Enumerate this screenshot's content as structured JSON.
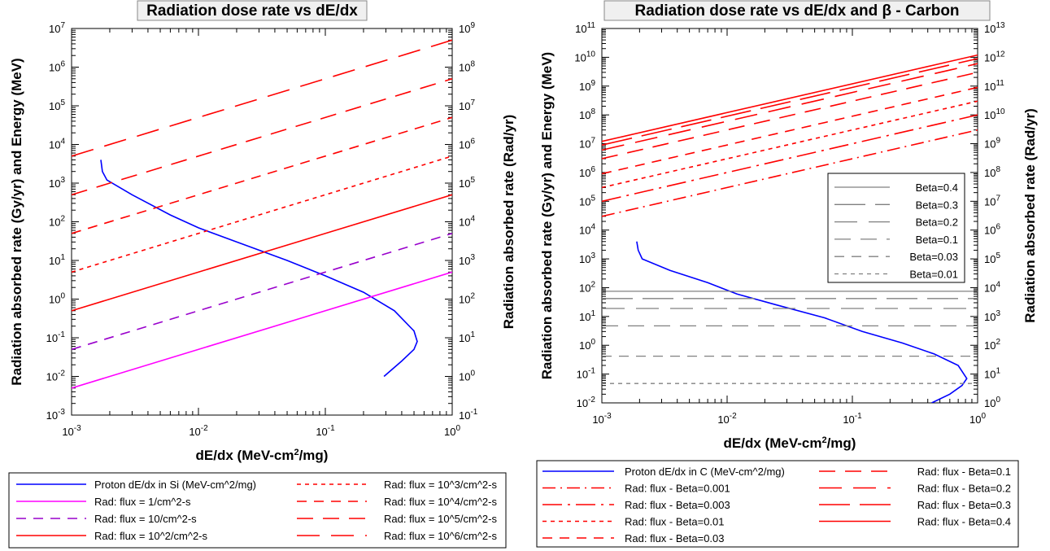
{
  "chart_data": [
    {
      "type": "line",
      "title": "Radiation dose rate vs dE/dx",
      "xlabel": "dE/dx (MeV-cm²/mg)",
      "ylabel_left": "Radiation absorbed rate (Gy/yr) and Energy (MeV)",
      "ylabel_right": "Radiation absorbed rate (Rad/yr)",
      "x_scale": "log",
      "y_scale": "log",
      "xlim": [
        0.001,
        1
      ],
      "ylim_left": [
        0.001,
        10000000
      ],
      "ylim_right": [
        0.1,
        1000000000
      ],
      "x_tick_labels": [
        {
          "base": "10",
          "exp": "-3"
        },
        {
          "base": "10",
          "exp": "-2"
        },
        {
          "base": "10",
          "exp": "-1"
        },
        {
          "base": "10",
          "exp": "0"
        }
      ],
      "y_left_tick_labels": [
        {
          "base": "10",
          "exp": "-3"
        },
        {
          "base": "10",
          "exp": "-2"
        },
        {
          "base": "10",
          "exp": "-1"
        },
        {
          "base": "10",
          "exp": "0"
        },
        {
          "base": "10",
          "exp": "1"
        },
        {
          "base": "10",
          "exp": "2"
        },
        {
          "base": "10",
          "exp": "3"
        },
        {
          "base": "10",
          "exp": "4"
        },
        {
          "base": "10",
          "exp": "5"
        },
        {
          "base": "10",
          "exp": "6"
        },
        {
          "base": "10",
          "exp": "7"
        }
      ],
      "y_right_tick_labels": [
        {
          "base": "10",
          "exp": "-1"
        },
        {
          "base": "10",
          "exp": "0"
        },
        {
          "base": "10",
          "exp": "1"
        },
        {
          "base": "10",
          "exp": "2"
        },
        {
          "base": "10",
          "exp": "3"
        },
        {
          "base": "10",
          "exp": "4"
        },
        {
          "base": "10",
          "exp": "5"
        },
        {
          "base": "10",
          "exp": "6"
        },
        {
          "base": "10",
          "exp": "7"
        },
        {
          "base": "10",
          "exp": "8"
        },
        {
          "base": "10",
          "exp": "9"
        }
      ],
      "grid": false,
      "legend_position": "below",
      "series": [
        {
          "name": "Proton dE/dx in Si (MeV-cm^2/mg)",
          "color": "#0000ff",
          "dash": "solid",
          "x": [
            0.0017,
            0.00175,
            0.0019,
            0.003,
            0.006,
            0.01,
            0.02,
            0.05,
            0.1,
            0.2,
            0.35,
            0.5,
            0.53,
            0.5,
            0.4,
            0.29
          ],
          "y": [
            4000,
            2000,
            1200,
            500,
            150,
            70,
            30,
            10,
            4,
            1.5,
            0.5,
            0.15,
            0.08,
            0.05,
            0.025,
            0.01
          ]
        },
        {
          "name": "Rad: flux = 1/cm^2-s",
          "color": "#ff00ff",
          "dash": "solid",
          "x": [
            0.001,
            1
          ],
          "y": [
            0.005,
            5
          ]
        },
        {
          "name": "Rad: flux = 10/cm^2-s",
          "color": "#9900cc",
          "dash": "dash-medium",
          "x": [
            0.001,
            1
          ],
          "y": [
            0.05,
            50
          ]
        },
        {
          "name": "Rad: flux = 10^2/cm^2-s",
          "color": "#ff0000",
          "dash": "solid",
          "x": [
            0.001,
            1
          ],
          "y": [
            0.5,
            500
          ]
        },
        {
          "name": "Rad: flux = 10^3/cm^2-s",
          "color": "#ff0000",
          "dash": "dash-short",
          "x": [
            0.001,
            1
          ],
          "y": [
            5,
            5000
          ]
        },
        {
          "name": "Rad: flux = 10^4/cm^2-s",
          "color": "#ff0000",
          "dash": "dash-medium",
          "x": [
            0.001,
            1
          ],
          "y": [
            50,
            50000
          ]
        },
        {
          "name": "Rad: flux = 10^5/cm^2-s",
          "color": "#ff0000",
          "dash": "dash-long",
          "x": [
            0.001,
            1
          ],
          "y": [
            500,
            500000
          ]
        },
        {
          "name": "Rad: flux = 10^6/cm^2-s",
          "color": "#ff0000",
          "dash": "dash-xlong",
          "x": [
            0.001,
            1
          ],
          "y": [
            5000,
            5000000
          ]
        }
      ],
      "legend": {
        "columns": [
          [
            "Proton dE/dx in Si (MeV-cm^2/mg)",
            "Rad: flux = 1/cm^2-s",
            "Rad: flux = 10/cm^2-s",
            "Rad: flux = 10^2/cm^2-s"
          ],
          [
            "Rad: flux = 10^3/cm^2-s",
            "Rad: flux = 10^4/cm^2-s",
            "Rad: flux = 10^5/cm^2-s",
            "Rad: flux = 10^6/cm^2-s"
          ]
        ]
      }
    },
    {
      "type": "line",
      "title": "Radiation dose rate vs dE/dx and β - Carbon",
      "xlabel": "dE/dx (MeV-cm²/mg)",
      "ylabel_left": "Radiation absorbed rate (Gy/yr) and Energy (MeV)",
      "ylabel_right": "Radiation absorbed rate (Rad/yr)",
      "x_scale": "log",
      "y_scale": "log",
      "xlim": [
        0.001,
        1
      ],
      "ylim_left": [
        0.01,
        100000000000
      ],
      "ylim_right": [
        1,
        10000000000000
      ],
      "x_tick_labels": [
        {
          "base": "10",
          "exp": "-3"
        },
        {
          "base": "10",
          "exp": "-2"
        },
        {
          "base": "10",
          "exp": "-1"
        },
        {
          "base": "10",
          "exp": "0"
        }
      ],
      "y_left_tick_labels": [
        {
          "base": "10",
          "exp": "-2"
        },
        {
          "base": "10",
          "exp": "-1"
        },
        {
          "base": "10",
          "exp": "0"
        },
        {
          "base": "10",
          "exp": "1"
        },
        {
          "base": "10",
          "exp": "2"
        },
        {
          "base": "10",
          "exp": "3"
        },
        {
          "base": "10",
          "exp": "4"
        },
        {
          "base": "10",
          "exp": "5"
        },
        {
          "base": "10",
          "exp": "6"
        },
        {
          "base": "10",
          "exp": "7"
        },
        {
          "base": "10",
          "exp": "8"
        },
        {
          "base": "10",
          "exp": "9"
        },
        {
          "base": "10",
          "exp": "10"
        },
        {
          "base": "10",
          "exp": "11"
        }
      ],
      "y_right_tick_labels": [
        {
          "base": "10",
          "exp": "0"
        },
        {
          "base": "10",
          "exp": "1"
        },
        {
          "base": "10",
          "exp": "2"
        },
        {
          "base": "10",
          "exp": "3"
        },
        {
          "base": "10",
          "exp": "4"
        },
        {
          "base": "10",
          "exp": "5"
        },
        {
          "base": "10",
          "exp": "6"
        },
        {
          "base": "10",
          "exp": "7"
        },
        {
          "base": "10",
          "exp": "8"
        },
        {
          "base": "10",
          "exp": "9"
        },
        {
          "base": "10",
          "exp": "10"
        },
        {
          "base": "10",
          "exp": "11"
        },
        {
          "base": "10",
          "exp": "12"
        },
        {
          "base": "10",
          "exp": "13"
        }
      ],
      "grid": false,
      "legend_position": "below",
      "series": [
        {
          "name": "Proton dE/dx in C (MeV-cm^2/mg)",
          "color": "#0000ff",
          "dash": "solid",
          "x": [
            0.0019,
            0.00195,
            0.0021,
            0.0035,
            0.007,
            0.012,
            0.025,
            0.06,
            0.12,
            0.25,
            0.45,
            0.7,
            0.82,
            0.75,
            0.6,
            0.43
          ],
          "y": [
            4000,
            2000,
            1000,
            400,
            150,
            60,
            25,
            9,
            3,
            1.2,
            0.5,
            0.2,
            0.07,
            0.04,
            0.02,
            0.01
          ]
        },
        {
          "name": "Rad: flux - Beta=0.001",
          "color": "#ff0000",
          "dash": "dash-dot",
          "x": [
            0.001,
            1
          ],
          "y": [
            30000,
            30000000
          ]
        },
        {
          "name": "Rad: flux - Beta=0.003",
          "color": "#ff0000",
          "dash": "dash-dot-long",
          "x": [
            0.001,
            1
          ],
          "y": [
            100000,
            100000000
          ]
        },
        {
          "name": "Rad: flux - Beta=0.01",
          "color": "#ff0000",
          "dash": "dash-short",
          "x": [
            0.001,
            1
          ],
          "y": [
            300000,
            300000000
          ]
        },
        {
          "name": "Rad: flux - Beta=0.03",
          "color": "#ff0000",
          "dash": "dash-medium",
          "x": [
            0.001,
            1
          ],
          "y": [
            900000,
            900000000
          ]
        },
        {
          "name": "Rad: flux - Beta=0.1",
          "color": "#ff0000",
          "dash": "dash-long",
          "x": [
            0.001,
            1
          ],
          "y": [
            3000000,
            3000000000
          ]
        },
        {
          "name": "Rad: flux - Beta=0.2",
          "color": "#ff0000",
          "dash": "dash-xlong",
          "x": [
            0.001,
            1
          ],
          "y": [
            6000000,
            6000000000
          ]
        },
        {
          "name": "Rad: flux - Beta=0.3",
          "color": "#ff0000",
          "dash": "dash-xxlong",
          "x": [
            0.001,
            1
          ],
          "y": [
            9000000,
            9000000000
          ]
        },
        {
          "name": "Rad: flux - Beta=0.4",
          "color": "#ff0000",
          "dash": "solid",
          "x": [
            0.001,
            1
          ],
          "y": [
            12000000,
            12000000000
          ]
        },
        {
          "name": "Beta=0.4",
          "color": "#808080",
          "dash": "solid",
          "x": [
            0.001,
            1
          ],
          "y": [
            75,
            75
          ]
        },
        {
          "name": "Beta=0.3",
          "color": "#808080",
          "dash": "dash-xxlong",
          "x": [
            0.001,
            1
          ],
          "y": [
            42,
            42
          ]
        },
        {
          "name": "Beta=0.2",
          "color": "#808080",
          "dash": "dash-xlong",
          "x": [
            0.001,
            1
          ],
          "y": [
            19,
            19
          ]
        },
        {
          "name": "Beta=0.1",
          "color": "#808080",
          "dash": "dash-long",
          "x": [
            0.001,
            1
          ],
          "y": [
            4.7,
            4.7
          ]
        },
        {
          "name": "Beta=0.03",
          "color": "#808080",
          "dash": "dash-medium",
          "x": [
            0.001,
            1
          ],
          "y": [
            0.42,
            0.42
          ]
        },
        {
          "name": "Beta=0.01",
          "color": "#808080",
          "dash": "dash-short",
          "x": [
            0.001,
            1
          ],
          "y": [
            0.047,
            0.047
          ]
        }
      ],
      "inner_legend": [
        "Beta=0.4",
        "Beta=0.3",
        "Beta=0.2",
        "Beta=0.1",
        "Beta=0.03",
        "Beta=0.01"
      ],
      "legend": {
        "columns": [
          [
            "Proton dE/dx in C (MeV-cm^2/mg)",
            "Rad: flux - Beta=0.001",
            "Rad: flux - Beta=0.003",
            "Rad: flux - Beta=0.01",
            "Rad: flux - Beta=0.03"
          ],
          [
            "Rad: flux - Beta=0.1",
            "Rad: flux - Beta=0.2",
            "Rad: flux - Beta=0.3",
            "Rad: flux - Beta=0.4"
          ]
        ]
      }
    }
  ]
}
